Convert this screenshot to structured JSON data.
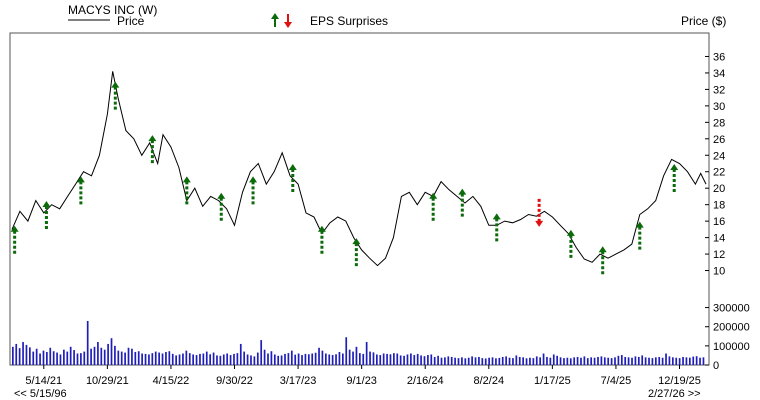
{
  "header": {
    "title": "MACYS INC (W)",
    "legend_price": "Price",
    "eps_label": "EPS Surprises",
    "price_axis_label": "Price ($)"
  },
  "footer": {
    "start_label": "<< 5/15/96",
    "end_label": "2/27/26 >>"
  },
  "colors": {
    "price_line": "#000000",
    "volume_bar": "#1f1fb8",
    "eps_up": "#0b6b0b",
    "eps_down": "#e01010",
    "frame": "#555555"
  },
  "chart_data": {
    "type": "line",
    "title": "MACYS INC (W)",
    "ylabel": "Price ($)",
    "ylim": [
      8,
      38
    ],
    "y_ticks": [
      10,
      12,
      14,
      16,
      18,
      20,
      22,
      24,
      26,
      28,
      30,
      32,
      34,
      36
    ],
    "x_tick_labels": [
      "5/14/21",
      "10/29/21",
      "4/15/22",
      "9/30/22",
      "3/17/23",
      "9/1/23",
      "2/16/24",
      "8/2/24",
      "1/17/25",
      "7/4/25",
      "12/19/25"
    ],
    "x_ticks": [
      "2021-05-14",
      "2021-10-29",
      "2022-04-15",
      "2022-09-30",
      "2023-03-17",
      "2023-09-01",
      "2024-02-16",
      "2024-08-02",
      "2025-01-17",
      "2025-07-04",
      "2025-12-19"
    ],
    "x_range": [
      "2021-02-19",
      "2026-02-27"
    ],
    "series": [
      {
        "name": "Price",
        "points": [
          [
            "2021-02-19",
            15.0
          ],
          [
            "2021-03-12",
            17.2
          ],
          [
            "2021-04-02",
            16.0
          ],
          [
            "2021-04-23",
            18.5
          ],
          [
            "2021-05-14",
            17.0
          ],
          [
            "2021-06-04",
            18.0
          ],
          [
            "2021-06-25",
            17.5
          ],
          [
            "2021-07-16",
            19.0
          ],
          [
            "2021-08-06",
            20.5
          ],
          [
            "2021-08-27",
            22.0
          ],
          [
            "2021-09-17",
            21.5
          ],
          [
            "2021-10-08",
            24.0
          ],
          [
            "2021-10-29",
            29.0
          ],
          [
            "2021-11-12",
            34.2
          ],
          [
            "2021-11-26",
            31.0
          ],
          [
            "2021-12-17",
            27.0
          ],
          [
            "2022-01-07",
            26.0
          ],
          [
            "2022-01-28",
            24.0
          ],
          [
            "2022-02-18",
            25.5
          ],
          [
            "2022-03-11",
            23.0
          ],
          [
            "2022-03-25",
            26.5
          ],
          [
            "2022-04-15",
            25.0
          ],
          [
            "2022-05-06",
            22.5
          ],
          [
            "2022-05-27",
            18.5
          ],
          [
            "2022-06-17",
            20.0
          ],
          [
            "2022-07-08",
            17.8
          ],
          [
            "2022-07-29",
            19.0
          ],
          [
            "2022-08-19",
            18.5
          ],
          [
            "2022-09-09",
            17.5
          ],
          [
            "2022-09-30",
            15.5
          ],
          [
            "2022-10-21",
            19.5
          ],
          [
            "2022-11-11",
            22.0
          ],
          [
            "2022-12-02",
            23.0
          ],
          [
            "2022-12-23",
            20.5
          ],
          [
            "2023-01-13",
            22.0
          ],
          [
            "2023-02-03",
            24.3
          ],
          [
            "2023-02-24",
            21.5
          ],
          [
            "2023-03-17",
            20.5
          ],
          [
            "2023-04-07",
            17.0
          ],
          [
            "2023-04-28",
            16.5
          ],
          [
            "2023-05-19",
            14.5
          ],
          [
            "2023-06-09",
            15.8
          ],
          [
            "2023-06-30",
            16.5
          ],
          [
            "2023-07-21",
            16.0
          ],
          [
            "2023-08-11",
            14.0
          ],
          [
            "2023-09-01",
            12.5
          ],
          [
            "2023-09-22",
            11.5
          ],
          [
            "2023-10-13",
            10.6
          ],
          [
            "2023-11-03",
            11.5
          ],
          [
            "2023-11-24",
            14.0
          ],
          [
            "2023-12-15",
            19.0
          ],
          [
            "2024-01-05",
            19.5
          ],
          [
            "2024-01-26",
            18.0
          ],
          [
            "2024-02-16",
            19.5
          ],
          [
            "2024-03-08",
            19.0
          ],
          [
            "2024-03-29",
            20.8
          ],
          [
            "2024-04-19",
            19.8
          ],
          [
            "2024-05-10",
            19.0
          ],
          [
            "2024-05-31",
            18.2
          ],
          [
            "2024-06-21",
            19.0
          ],
          [
            "2024-07-12",
            17.8
          ],
          [
            "2024-08-02",
            15.5
          ],
          [
            "2024-08-23",
            15.5
          ],
          [
            "2024-09-13",
            16.0
          ],
          [
            "2024-10-04",
            15.8
          ],
          [
            "2024-10-25",
            16.2
          ],
          [
            "2024-11-15",
            16.8
          ],
          [
            "2024-12-06",
            16.6
          ],
          [
            "2024-12-27",
            17.2
          ],
          [
            "2025-01-17",
            16.5
          ],
          [
            "2025-02-07",
            15.5
          ],
          [
            "2025-02-28",
            14.5
          ],
          [
            "2025-03-21",
            12.8
          ],
          [
            "2025-04-11",
            11.4
          ],
          [
            "2025-05-02",
            11.0
          ],
          [
            "2025-05-23",
            12.0
          ],
          [
            "2025-06-13",
            11.5
          ],
          [
            "2025-07-04",
            12.0
          ],
          [
            "2025-07-25",
            12.5
          ],
          [
            "2025-08-15",
            13.2
          ],
          [
            "2025-09-05",
            16.8
          ],
          [
            "2025-09-26",
            17.5
          ],
          [
            "2025-10-17",
            18.5
          ],
          [
            "2025-11-07",
            21.5
          ],
          [
            "2025-11-28",
            23.5
          ],
          [
            "2025-12-19",
            23.0
          ],
          [
            "2026-01-09",
            22.0
          ],
          [
            "2026-01-30",
            20.5
          ],
          [
            "2026-02-13",
            21.8
          ],
          [
            "2026-02-27",
            20.5
          ]
        ]
      }
    ],
    "eps_surprises": [
      {
        "date": "2021-02-26",
        "price": 13.5,
        "dir": "up"
      },
      {
        "date": "2021-05-21",
        "price": 16.5,
        "dir": "up"
      },
      {
        "date": "2021-08-20",
        "price": 19.5,
        "dir": "up"
      },
      {
        "date": "2021-11-19",
        "price": 31.0,
        "dir": "up"
      },
      {
        "date": "2022-02-25",
        "price": 24.5,
        "dir": "up"
      },
      {
        "date": "2022-05-27",
        "price": 19.5,
        "dir": "up"
      },
      {
        "date": "2022-08-26",
        "price": 17.5,
        "dir": "up"
      },
      {
        "date": "2022-11-18",
        "price": 19.5,
        "dir": "up"
      },
      {
        "date": "2023-03-03",
        "price": 21.0,
        "dir": "up"
      },
      {
        "date": "2023-05-19",
        "price": 13.5,
        "dir": "up"
      },
      {
        "date": "2023-08-18",
        "price": 12.0,
        "dir": "up"
      },
      {
        "date": "2024-03-08",
        "price": 17.5,
        "dir": "up"
      },
      {
        "date": "2024-05-24",
        "price": 18.0,
        "dir": "up"
      },
      {
        "date": "2024-08-23",
        "price": 15.0,
        "dir": "up"
      },
      {
        "date": "2024-12-13",
        "price": 17.0,
        "dir": "down"
      },
      {
        "date": "2025-03-07",
        "price": 13.0,
        "dir": "up"
      },
      {
        "date": "2025-05-30",
        "price": 11.0,
        "dir": "up"
      },
      {
        "date": "2025-09-05",
        "price": 14.0,
        "dir": "up"
      },
      {
        "date": "2025-12-05",
        "price": 21.0,
        "dir": "up"
      }
    ],
    "volume": {
      "ylim": [
        0,
        350000
      ],
      "y_ticks": [
        0,
        100000,
        200000,
        300000
      ],
      "y_tick_labels": [
        "0",
        "100000",
        "200000",
        "300000"
      ],
      "values": [
        95000,
        110000,
        88000,
        120000,
        105000,
        92000,
        70000,
        85000,
        60000,
        75000,
        68000,
        90000,
        72000,
        65000,
        55000,
        80000,
        70000,
        95000,
        78000,
        60000,
        62000,
        70000,
        230000,
        85000,
        95000,
        120000,
        90000,
        80000,
        110000,
        140000,
        100000,
        75000,
        70000,
        65000,
        90000,
        85000,
        68000,
        72000,
        60000,
        58000,
        55000,
        62000,
        70000,
        65000,
        60000,
        68000,
        72000,
        58000,
        50000,
        55000,
        60000,
        75000,
        62000,
        55000,
        52000,
        58000,
        60000,
        70000,
        56000,
        65000,
        50000,
        48000,
        55000,
        60000,
        52000,
        58000,
        62000,
        110000,
        70000,
        55000,
        50000,
        45000,
        65000,
        130000,
        80000,
        60000,
        72000,
        55000,
        48000,
        50000,
        58000,
        62000,
        75000,
        54000,
        60000,
        52000,
        58000,
        56000,
        60000,
        64000,
        90000,
        75000,
        60000,
        55000,
        52000,
        56000,
        68000,
        60000,
        145000,
        80000,
        70000,
        95000,
        62000,
        58000,
        120000,
        70000,
        66000,
        55000,
        52000,
        60000,
        58000,
        56000,
        62000,
        60000,
        50000,
        48000,
        55000,
        60000,
        52000,
        58000,
        50000,
        46000,
        52000,
        55000,
        42000,
        48000,
        38000,
        40000,
        45000,
        42000,
        38000,
        36000,
        40000,
        35000,
        38000,
        45000,
        40000,
        42000,
        36000,
        34000,
        38000,
        40000,
        35000,
        37000,
        42000,
        45000,
        38000,
        36000,
        50000,
        42000,
        40000,
        35000,
        38000,
        36000,
        45000,
        40000,
        60000,
        42000,
        38000,
        55000,
        48000,
        40000,
        36000,
        38000,
        35000,
        40000,
        42000,
        38000,
        45000,
        36000,
        40000,
        38000,
        42000,
        45000,
        40000,
        38000,
        36000,
        40000,
        48000,
        52000,
        42000,
        40000,
        38000,
        45000,
        42000,
        50000,
        40000,
        38000,
        36000,
        40000,
        42000,
        38000,
        60000,
        45000,
        40000,
        38000,
        36000,
        42000,
        40000,
        38000,
        44000,
        46000,
        38000,
        40000
      ]
    },
    "grid": false,
    "legend": "top-left"
  }
}
